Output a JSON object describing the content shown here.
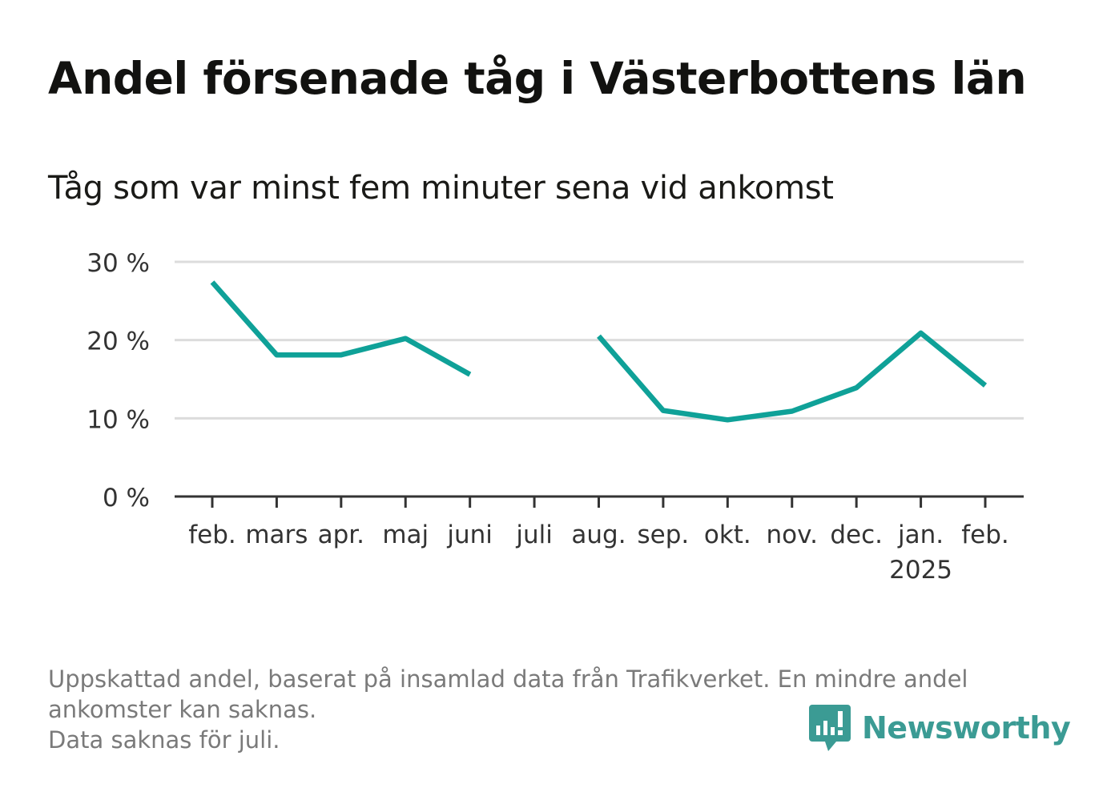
{
  "title": "Andel försenade tåg i Västerbottens län",
  "subtitle": "Tåg som var minst fem minuter sena vid ankomst",
  "footnote": {
    "line1": "Uppskattad andel, baserat på insamlad data från Trafikverket. En mindre andel",
    "line2": "ankomster kan saknas.",
    "line3": "Data saknas för juli."
  },
  "brand": {
    "name": "Newsworthy",
    "color": "#3b9b94"
  },
  "chart_data": {
    "type": "line",
    "categories": [
      "feb.",
      "mars",
      "apr.",
      "maj",
      "juni",
      "juli",
      "aug.",
      "sep.",
      "okt.",
      "nov.",
      "dec.",
      "jan.",
      "feb."
    ],
    "category_sublabels": [
      "",
      "",
      "",
      "",
      "",
      "",
      "",
      "",
      "",
      "",
      "",
      "2025",
      ""
    ],
    "series": [
      {
        "values": [
          27.4,
          18.1,
          18.1,
          20.2,
          15.6,
          null,
          20.5,
          11.0,
          9.8,
          10.9,
          13.9,
          20.9,
          14.2
        ],
        "color": "#0fa198"
      }
    ],
    "y_ticks": [
      0,
      10,
      20,
      30
    ],
    "y_tick_labels": [
      "0 %",
      "10 %",
      "20 %",
      "30 %"
    ],
    "ylim": [
      0,
      30
    ],
    "grid": true,
    "xlabel": "",
    "ylabel": ""
  }
}
